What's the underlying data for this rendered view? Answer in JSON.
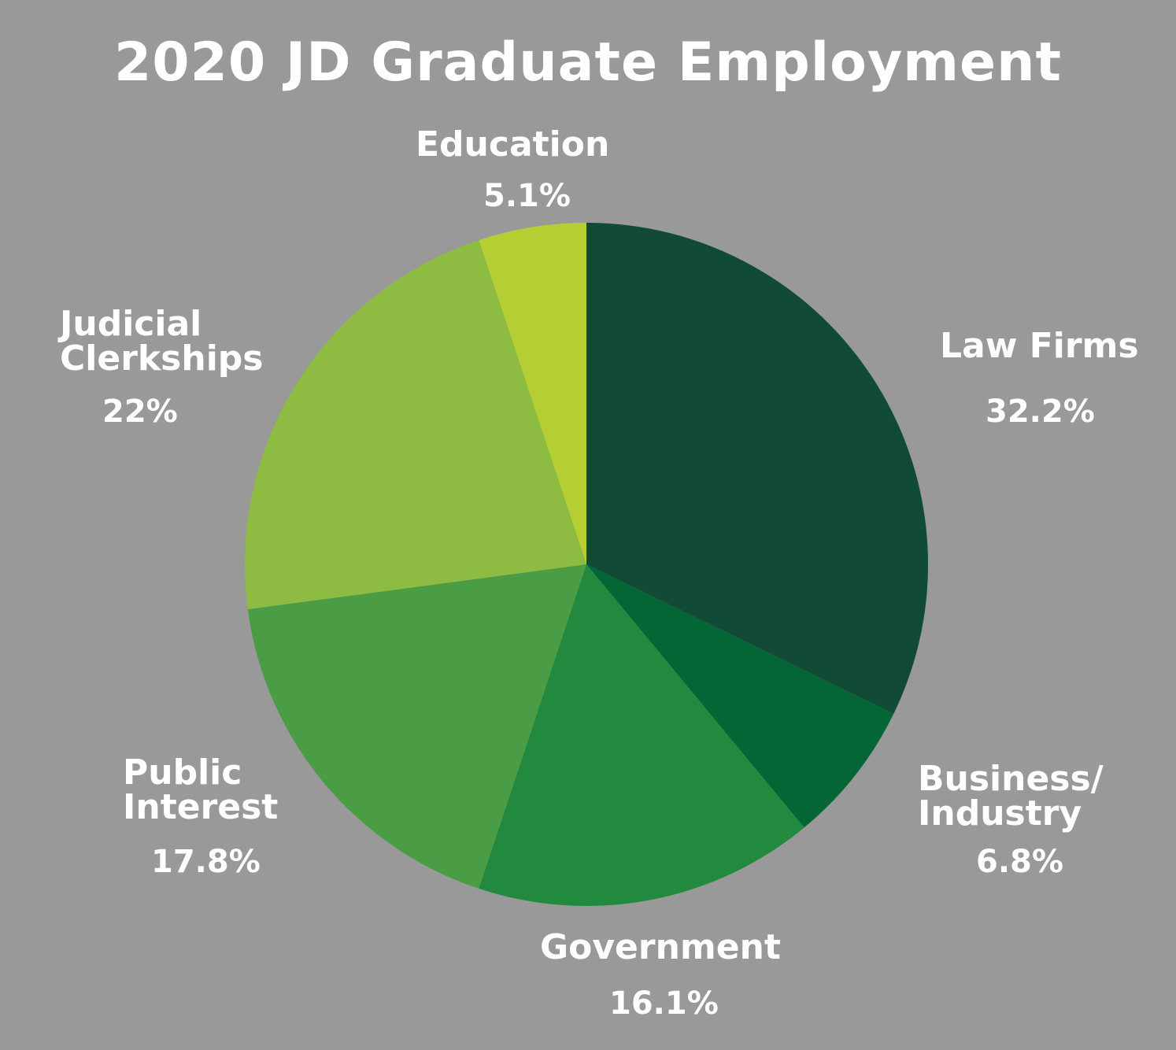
{
  "chart_data": {
    "type": "pie",
    "title": "2020 JD Graduate Employment",
    "slices": [
      {
        "label": "Law Firms",
        "value_label": "32.2%",
        "value": 32.2,
        "color": "#114a36"
      },
      {
        "label": "Business/ Industry",
        "value_label": "6.8%",
        "value": 6.8,
        "color": "#036634"
      },
      {
        "label": "Government",
        "value_label": "16.1%",
        "value": 16.1,
        "color": "#218a3f"
      },
      {
        "label": "Public Interest",
        "value_label": "17.8%",
        "value": 17.8,
        "color": "#4a9c45"
      },
      {
        "label": "Judicial Clerkships",
        "value_label": "22%",
        "value": 22,
        "color": "#8ebb41"
      },
      {
        "label": "Education",
        "value_label": "5.1%",
        "value": 5.1,
        "color": "#b5ce33"
      }
    ],
    "labels": {
      "law_firms": "Law Firms",
      "law_firms_value": "32.2%",
      "business_line1": "Business/",
      "business_line2": "Industry",
      "business_value": "6.8%",
      "government": "Government",
      "government_value": "16.1%",
      "public_line1": "Public",
      "public_line2": "Interest",
      "public_value": "17.8%",
      "judicial_line1": "Judicial",
      "judicial_line2": "Clerkships",
      "judicial_value": "22%",
      "education": "Education",
      "education_value": "5.1%"
    }
  }
}
